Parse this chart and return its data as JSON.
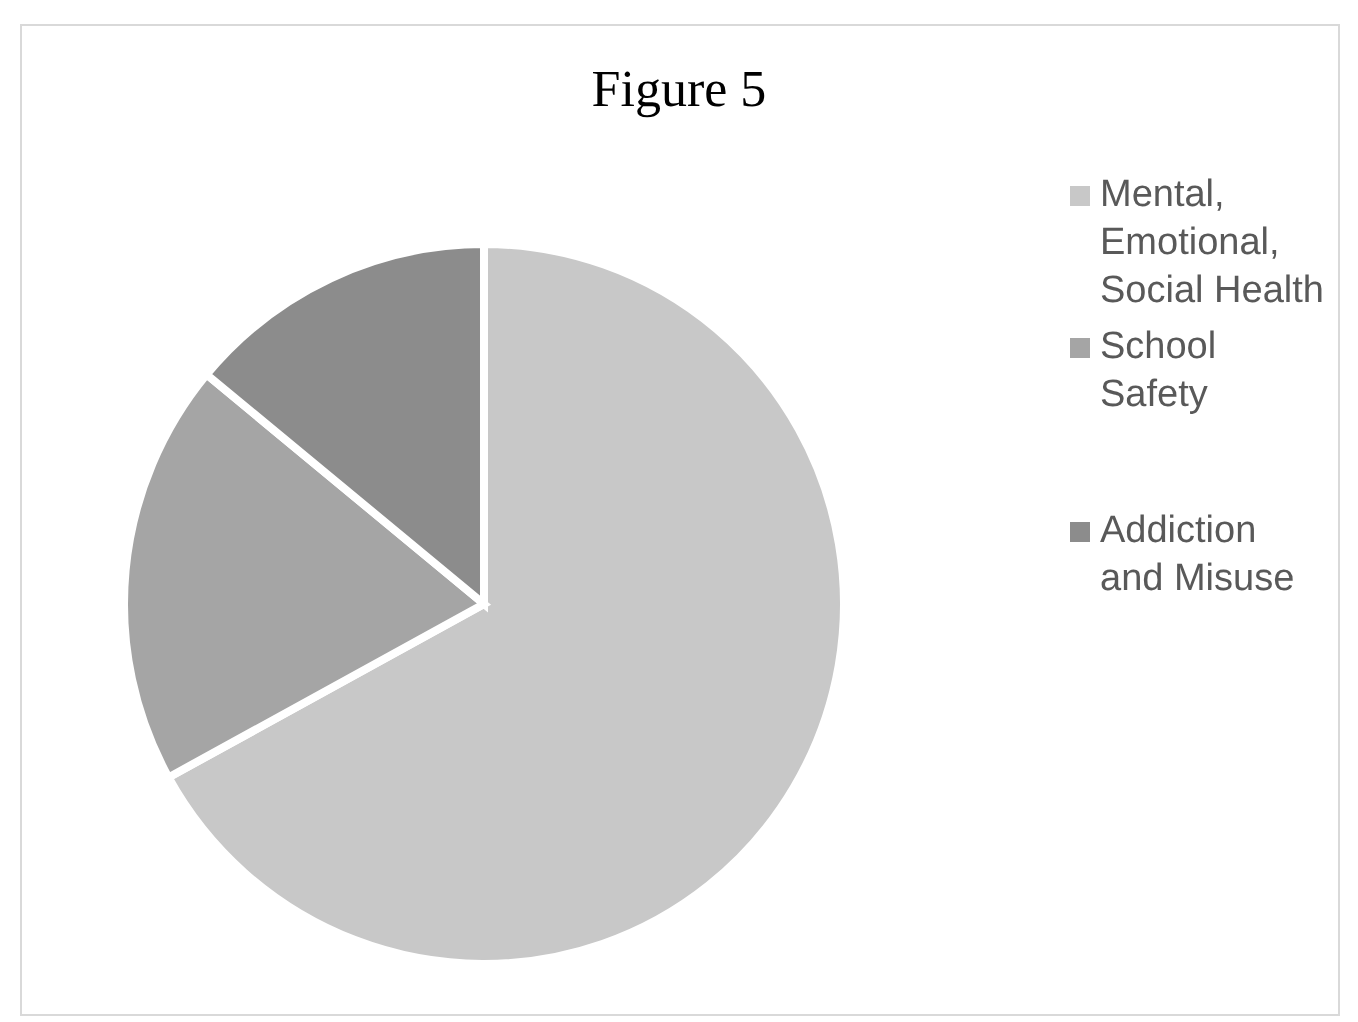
{
  "chart_data": {
    "type": "pie",
    "title": "Figure 5",
    "categories": [
      "Mental, Emotional, Social Health",
      "School Safety",
      "Addiction and Misuse"
    ],
    "values": [
      67,
      19,
      14
    ],
    "colors": [
      "#c8c8c8",
      "#a5a5a5",
      "#8c8c8c"
    ],
    "legend": "right"
  }
}
